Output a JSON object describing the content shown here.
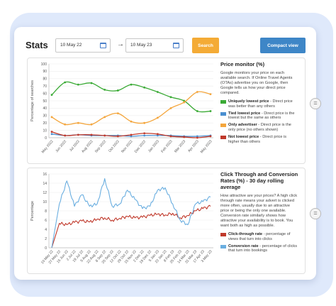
{
  "header": {
    "title": "Stats",
    "date_from": "10 May 22",
    "date_to": "10 May 23",
    "search_label": "Search",
    "compact_label": "Compact view",
    "arrow": "→",
    "eq_symbol": "="
  },
  "price_monitor": {
    "title": "Price monitor (%)",
    "description": "Google monitors your price on each available search. If Online Travel Agents (OTAs) advertise you on Google, then Google tells us how your direct price compared.",
    "legend": [
      {
        "name": "Uniquely lowest price",
        "desc": " - Direct price was better than any others",
        "color": "#3aaa35"
      },
      {
        "name": "Tied lowest price",
        "desc": " - Direct price is the lowest but the same as others",
        "color": "#4a8fd0"
      },
      {
        "name": "Only advertiser",
        "desc": " - Direct price is the only price (no others shown)",
        "color": "#f4a63d"
      },
      {
        "name": "Not lowest price",
        "desc": " - Direct price is higher than others",
        "color": "#c0392b"
      }
    ]
  },
  "ctr": {
    "title": "Click Through and Conversion Rates (%) - 30 day rolling average",
    "description": "How attractive are your prices? A high click through rate means your advert is clicked more often, usually due to an attractive price or being the only one available. Conversion rate similarly shows how attractive your availability is to book. You want both as high as possible.",
    "legend": [
      {
        "name": "Click-through rate",
        "desc": " - percentage of views that turn into clicks",
        "color": "#c0392b"
      },
      {
        "name": "Conversion rate",
        "desc": " - percentage of clicks that turn into bookings",
        "color": "#6aaee0"
      }
    ]
  },
  "chart_data": [
    {
      "type": "line",
      "title": "",
      "ylabel": "Percentage of searches",
      "xlabel": "",
      "ylim": [
        0,
        100
      ],
      "yticks": [
        0,
        10,
        20,
        30,
        40,
        50,
        60,
        70,
        80,
        90,
        100
      ],
      "categories": [
        "May 2022",
        "Jun 2022",
        "Jul 2022",
        "Aug 2022",
        "Sep 2022",
        "Oct 2022",
        "Nov 2022",
        "Dec 2022",
        "Jan 2023",
        "Feb 2023",
        "Mar 2023",
        "Apr 2023",
        "May 2023"
      ],
      "series": [
        {
          "name": "Uniquely lowest price",
          "color": "#3aaa35",
          "values": [
            58,
            75,
            72,
            74,
            65,
            64,
            72,
            68,
            62,
            55,
            50,
            36,
            36
          ]
        },
        {
          "name": "Tied lowest price",
          "color": "#4a8fd0",
          "values": [
            5,
            3,
            4,
            3,
            3,
            3,
            2,
            3,
            3,
            3,
            2,
            2,
            3
          ]
        },
        {
          "name": "Only advertiser",
          "color": "#f4a63d",
          "values": [
            28,
            18,
            20,
            18,
            28,
            33,
            22,
            20,
            27,
            40,
            48,
            62,
            59
          ]
        },
        {
          "name": "Not lowest price",
          "color": "#c0392b",
          "values": [
            8,
            3,
            4,
            4,
            3,
            2,
            4,
            6,
            5,
            2,
            1,
            0,
            2
          ]
        }
      ]
    },
    {
      "type": "line",
      "title": "",
      "ylabel": "Percentage",
      "xlabel": "",
      "ylim": [
        0,
        16
      ],
      "yticks": [
        0,
        2,
        4,
        6,
        8,
        10,
        12,
        14,
        16
      ],
      "categories": [
        "10 May 22",
        "27 May 22",
        "15 Jun 22",
        "2 Jul 22",
        "19 Jul 22",
        "5 Aug 22",
        "22 Aug 22",
        "8 Sep 22",
        "25 Sep 22",
        "12 Oct 22",
        "29 Oct 22",
        "15 Nov 22",
        "2 Dec 22",
        "19 Dec 22",
        "5 Jan 23",
        "22 Jan 23",
        "8 Feb 23",
        "25 Feb 23",
        "14 Mar 23",
        "31 Mar 23",
        "17 Apr 23",
        "3 May 23"
      ],
      "series": [
        {
          "name": "Click-through rate",
          "color": "#c0392b",
          "values": [
            0,
            5.3,
            5.0,
            5.5,
            5.8,
            5.6,
            6.2,
            6.5,
            6.0,
            6.4,
            6.8,
            6.5,
            6.6,
            7.0,
            7.3,
            7.1,
            7.5,
            6.5,
            7.0,
            8.0,
            8.5,
            9.0
          ]
        },
        {
          "name": "Conversion rate",
          "color": "#6aaee0",
          "values": [
            0,
            9.5,
            14.5,
            9.0,
            11.5,
            9.0,
            9.5,
            15.0,
            9.0,
            9.5,
            12.5,
            10.5,
            8.5,
            9.0,
            12.5,
            13.0,
            9.5,
            6.0,
            5.0,
            9.5,
            10.0,
            11.0
          ]
        }
      ]
    }
  ]
}
